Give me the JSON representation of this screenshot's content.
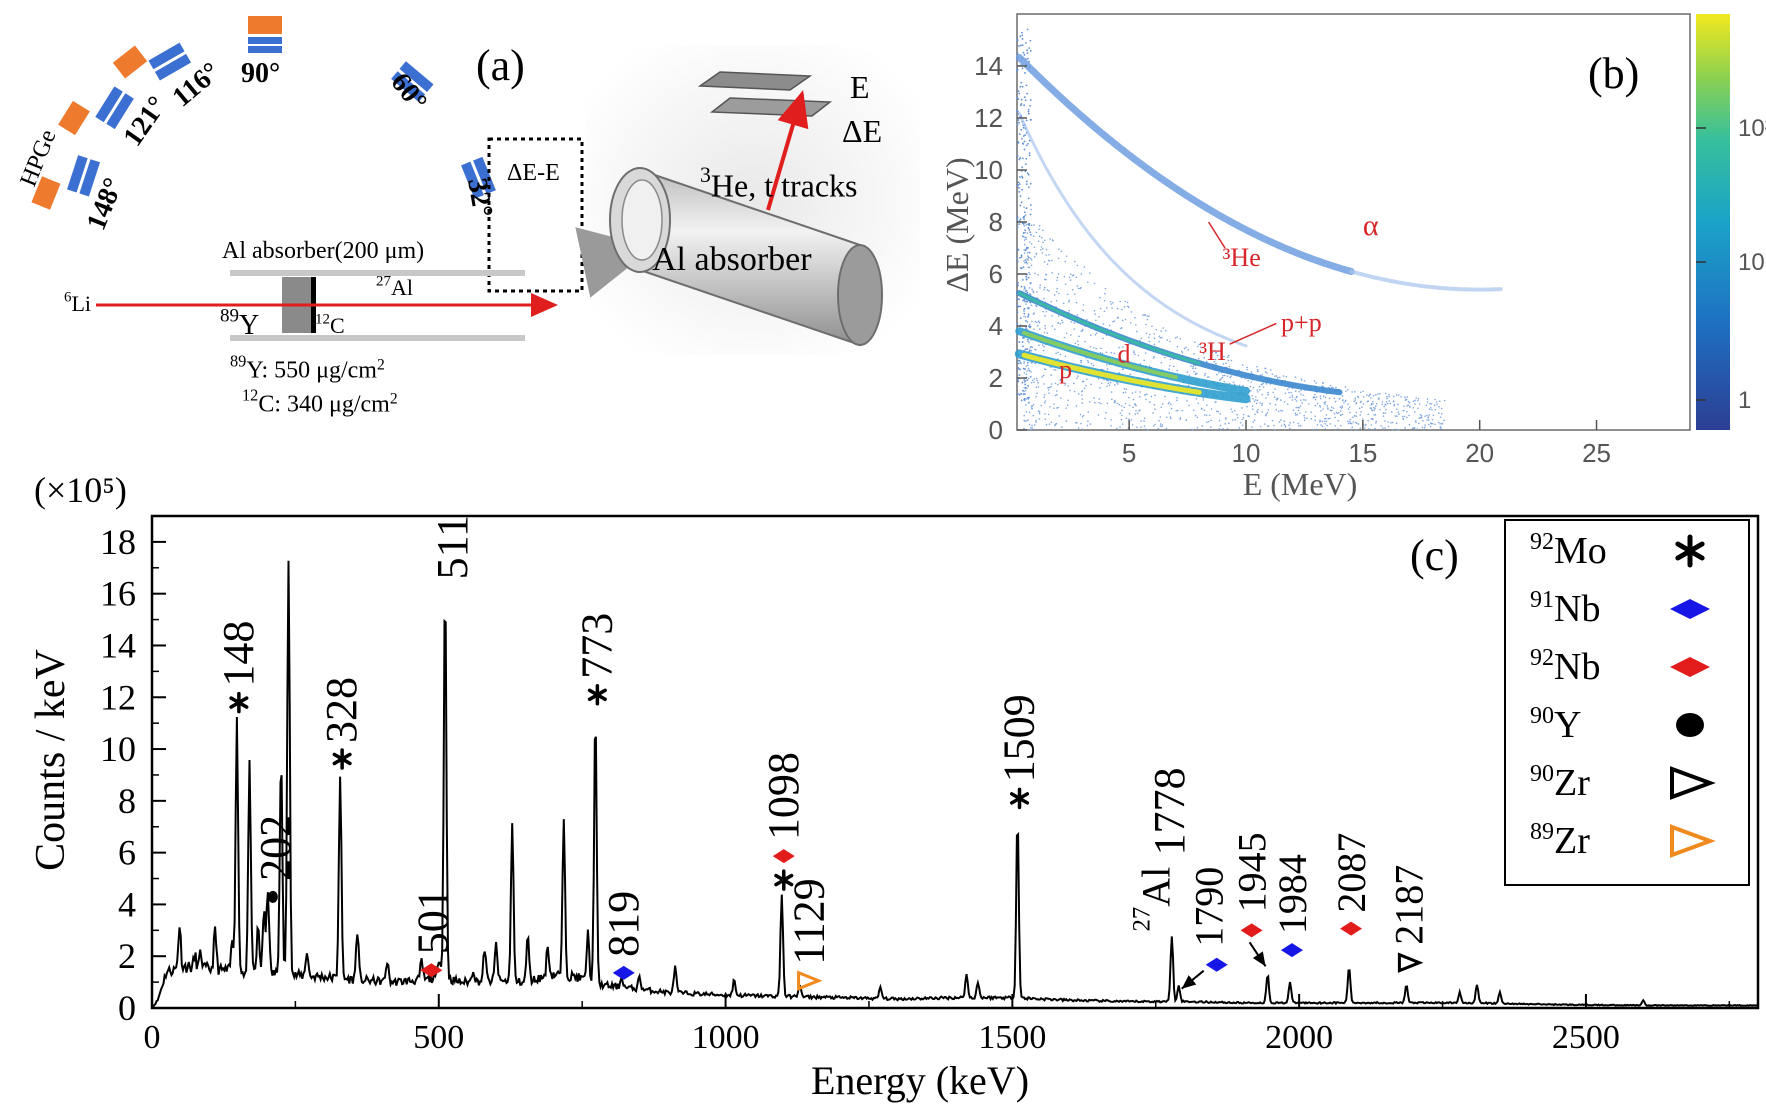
{
  "panel_a": {
    "tag": "(a)",
    "detector_label": "HPGe",
    "angles": [
      "148°",
      "121°",
      "116°",
      "90°",
      "60°",
      "32°"
    ],
    "beam_label": "6Li",
    "target_label": "89Y",
    "backing_label": "12C",
    "absorber_foil_label": "27Al",
    "absorber_label": "Al absorber(200 μm)",
    "telescope_label": "ΔE-E",
    "target_thickness": "89Y: 550 μg/cm2",
    "backing_thickness": "12C: 340 μg/cm2",
    "inset": {
      "e_label": "E",
      "de_label": "ΔE",
      "tracks_label": "3He, t tracks",
      "cylinder_label": "Al absorber"
    }
  },
  "panel_b": {
    "tag": "(b)",
    "xlabel": "E (MeV)",
    "ylabel": "ΔE (MeV)",
    "x_ticks": [
      5,
      10,
      15,
      20,
      25
    ],
    "y_ticks": [
      0,
      2,
      4,
      6,
      8,
      10,
      12,
      14
    ],
    "xlim": [
      0.2,
      29
    ],
    "ylim": [
      0,
      16
    ],
    "colorbar_ticks": [
      "1",
      "10",
      "10²"
    ],
    "colormap": [
      "#2c3e93",
      "#1f6fc1",
      "#1aa3c8",
      "#37c09b",
      "#8fd14f",
      "#f2e91f"
    ],
    "bands": [
      {
        "name": "p",
        "label_at": [
          2,
          2
        ]
      },
      {
        "name": "d",
        "label_at": [
          4.5,
          2.6
        ]
      },
      {
        "name": "³H",
        "label_at": [
          8,
          2.7
        ]
      },
      {
        "name": "p+p",
        "label_at": [
          11.5,
          3.8
        ]
      },
      {
        "name": "³He",
        "label_at": [
          9,
          6.3
        ]
      },
      {
        "name": "α",
        "label_at": [
          15,
          7.5
        ]
      }
    ]
  },
  "chart_data": {
    "type": "line",
    "tag": "(c)",
    "xlabel": "Energy (keV)",
    "ylabel": "Counts  / keV",
    "y_multiplier": "(×10⁵)",
    "xlim": [
      0,
      2800
    ],
    "ylim": [
      0,
      19
    ],
    "x_ticks": [
      0,
      500,
      1000,
      1500,
      2000,
      2500
    ],
    "y_ticks": [
      0,
      2,
      4,
      6,
      8,
      10,
      12,
      14,
      16,
      18
    ],
    "background": [
      [
        0,
        0
      ],
      [
        10,
        0.3
      ],
      [
        25,
        1.4
      ],
      [
        60,
        1.6
      ],
      [
        100,
        1.5
      ],
      [
        150,
        1.4
      ],
      [
        200,
        1.35
      ],
      [
        260,
        1.25
      ],
      [
        300,
        1.2
      ],
      [
        350,
        1.1
      ],
      [
        420,
        1.0
      ],
      [
        480,
        1.1
      ],
      [
        500,
        1.2
      ],
      [
        540,
        1.0
      ],
      [
        600,
        1.05
      ],
      [
        650,
        1.0
      ],
      [
        700,
        1.3
      ],
      [
        740,
        1.2
      ],
      [
        780,
        0.9
      ],
      [
        820,
        0.8
      ],
      [
        900,
        0.6
      ],
      [
        1000,
        0.5
      ],
      [
        1100,
        0.45
      ],
      [
        1200,
        0.4
      ],
      [
        1300,
        0.35
      ],
      [
        1400,
        0.4
      ],
      [
        1500,
        0.4
      ],
      [
        1600,
        0.3
      ],
      [
        1700,
        0.25
      ],
      [
        1800,
        0.25
      ],
      [
        1900,
        0.2
      ],
      [
        2000,
        0.2
      ],
      [
        2100,
        0.2
      ],
      [
        2200,
        0.2
      ],
      [
        2300,
        0.2
      ],
      [
        2400,
        0.15
      ],
      [
        2500,
        0.12
      ],
      [
        2600,
        0.1
      ],
      [
        2700,
        0.1
      ],
      [
        2800,
        0.1
      ]
    ],
    "peaks": [
      [
        48,
        3.2
      ],
      [
        75,
        2.0
      ],
      [
        85,
        2.1
      ],
      [
        110,
        3.0
      ],
      [
        140,
        2.6
      ],
      [
        148,
        11.1
      ],
      [
        170,
        9.4
      ],
      [
        185,
        3.1
      ],
      [
        195,
        3.7
      ],
      [
        202,
        4.6
      ],
      [
        225,
        9.7
      ],
      [
        238,
        17.3
      ],
      [
        270,
        2.2
      ],
      [
        328,
        9.0
      ],
      [
        358,
        3.0
      ],
      [
        410,
        1.8
      ],
      [
        470,
        1.8
      ],
      [
        501,
        2.0
      ],
      [
        511,
        16.4
      ],
      [
        560,
        1.5
      ],
      [
        580,
        2.3
      ],
      [
        600,
        2.5
      ],
      [
        628,
        7.1
      ],
      [
        655,
        2.8
      ],
      [
        690,
        2.4
      ],
      [
        718,
        7.2
      ],
      [
        760,
        2.9
      ],
      [
        773,
        11.4
      ],
      [
        819,
        1.2
      ],
      [
        850,
        1.2
      ],
      [
        912,
        1.6
      ],
      [
        1015,
        1.1
      ],
      [
        1098,
        4.4
      ],
      [
        1129,
        0.9
      ],
      [
        1270,
        0.8
      ],
      [
        1420,
        1.3
      ],
      [
        1440,
        1.0
      ],
      [
        1509,
        7.4
      ],
      [
        1778,
        2.8
      ],
      [
        1790,
        0.9
      ],
      [
        1945,
        1.3
      ],
      [
        1984,
        1.0
      ],
      [
        2087,
        1.6
      ],
      [
        2187,
        0.9
      ],
      [
        2280,
        0.6
      ],
      [
        2310,
        0.9
      ],
      [
        2350,
        0.6
      ],
      [
        2600,
        0.3
      ]
    ],
    "peak_labels": [
      {
        "text": "148",
        "x": 148,
        "y": 11.1,
        "marker": "asterisk"
      },
      {
        "text": "202",
        "x": 202,
        "y": 4.6,
        "marker": "dot"
      },
      {
        "text": "328",
        "x": 328,
        "y": 9.0,
        "marker": "asterisk"
      },
      {
        "text": "501",
        "x": 501,
        "y": 2.0,
        "marker": "diamond-red"
      },
      {
        "text": "511",
        "x": 511,
        "y": 16.4,
        "marker": "none"
      },
      {
        "text": "773",
        "x": 773,
        "y": 11.4,
        "marker": "asterisk"
      },
      {
        "text": "819",
        "x": 819,
        "y": 1.2,
        "marker": "diamond-blue"
      },
      {
        "text": "1098",
        "x": 1098,
        "y": 4.4,
        "marker": "asterisk-diamond-red"
      },
      {
        "text": "1129",
        "x": 1129,
        "y": 0.9,
        "marker": "triangle-orange"
      },
      {
        "text": "1509",
        "x": 1509,
        "y": 7.4,
        "marker": "asterisk"
      },
      {
        "text": "1778",
        "x": 1778,
        "y": 2.8,
        "marker": "none"
      },
      {
        "text": "27Al",
        "x": 1778,
        "y": 2.8,
        "marker": "none"
      },
      {
        "text": "1790",
        "x": 1790,
        "y": 0.9,
        "marker": "diamond-blue"
      },
      {
        "text": "1945",
        "x": 1945,
        "y": 1.3,
        "marker": "diamond-red"
      },
      {
        "text": "1984",
        "x": 1984,
        "y": 1.0,
        "marker": "diamond-blue"
      },
      {
        "text": "2087",
        "x": 2087,
        "y": 1.6,
        "marker": "diamond-red"
      },
      {
        "text": "2187",
        "x": 2187,
        "y": 0.9,
        "marker": "triangle-black"
      }
    ],
    "legend": {
      "position": "top-right",
      "entries": [
        {
          "label": "92Mo",
          "marker": "asterisk",
          "color": "#000000"
        },
        {
          "label": "91Nb",
          "marker": "diamond",
          "color": "#1616e6"
        },
        {
          "label": "92Nb",
          "marker": "diamond",
          "color": "#e21b1b"
        },
        {
          "label": "90Y",
          "marker": "dot",
          "color": "#000000"
        },
        {
          "label": "90Zr",
          "marker": "triangle",
          "color": "#000000"
        },
        {
          "label": "89Zr",
          "marker": "triangle",
          "color": "#f08a1f"
        }
      ]
    }
  },
  "colors": {
    "beam": "#e01e1e",
    "orange_detector": "#ee7a2e",
    "blue_detector": "#3b6fd1",
    "label_red": "#d6262a",
    "blue_marker": "#1616e6",
    "red_marker": "#e21b1b",
    "orange_marker": "#f08a1f"
  }
}
